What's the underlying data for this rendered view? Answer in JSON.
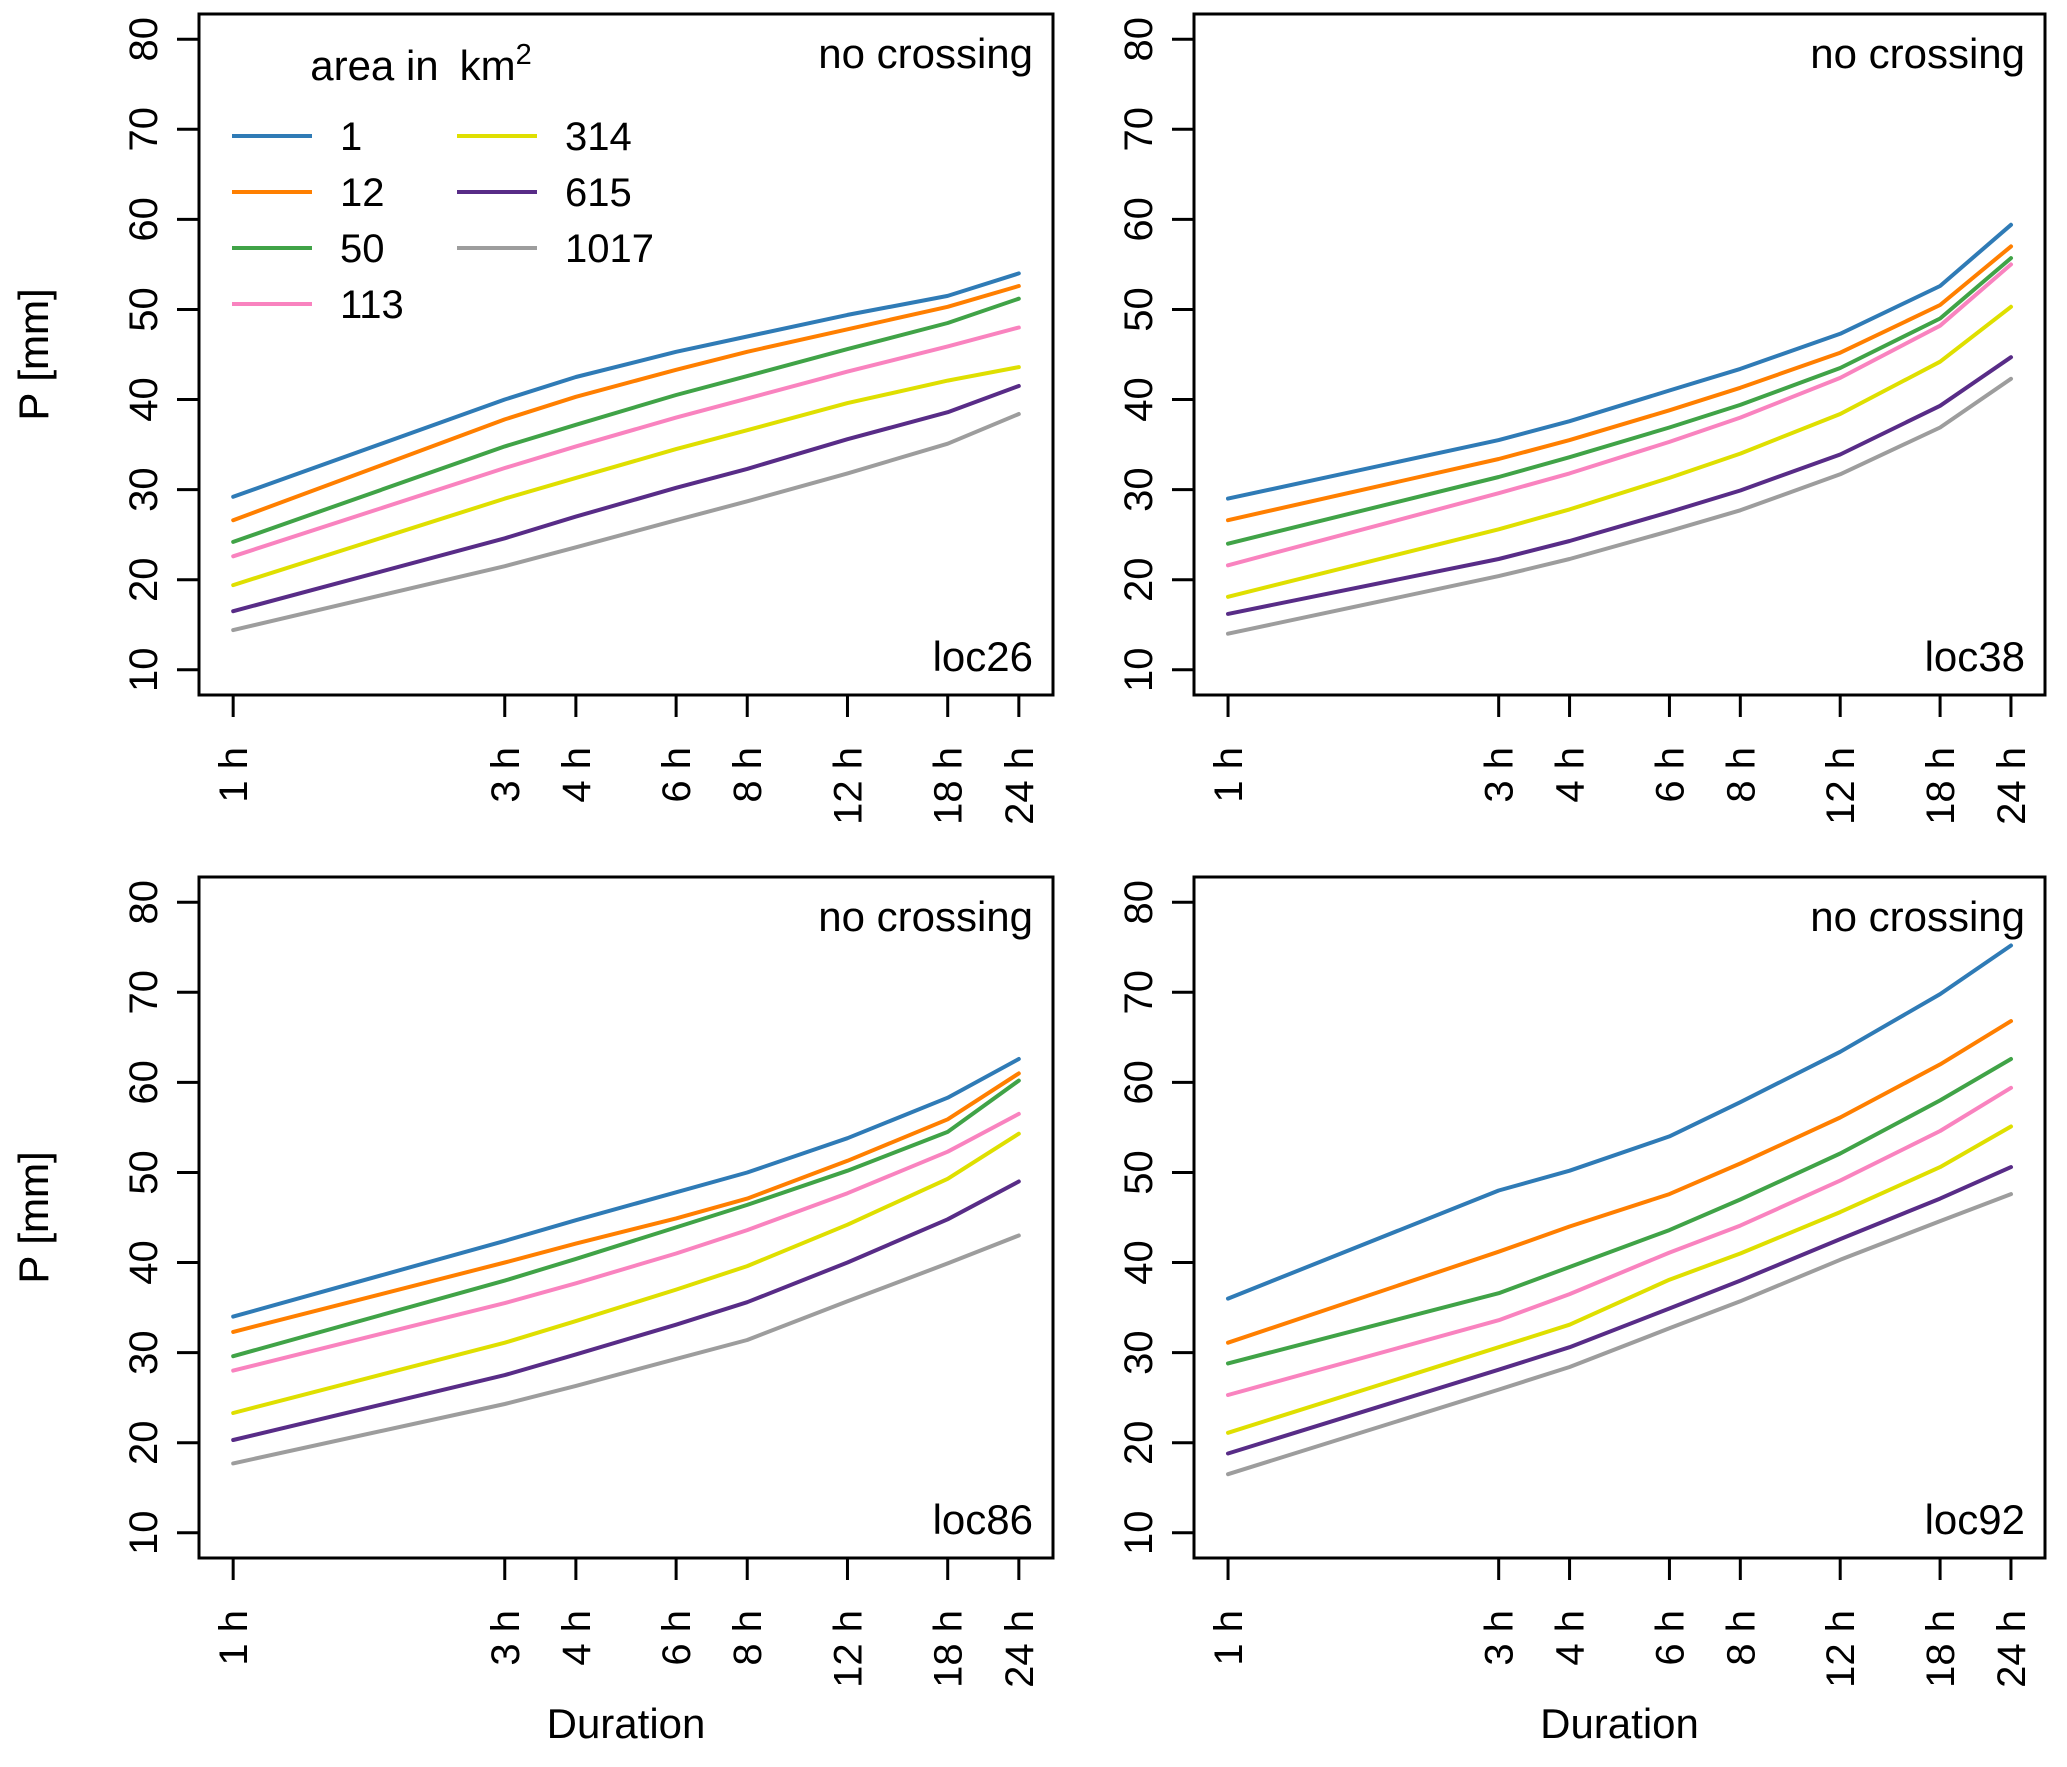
{
  "figure": {
    "background": "#ffffff",
    "text_color": "#000000"
  },
  "chart_data": {
    "type": "line",
    "layout": "2x2-panel-grid",
    "grid": "off",
    "x_scale": "log",
    "x_hours": [
      1,
      3,
      4,
      6,
      8,
      12,
      18,
      24
    ],
    "x_tick_labels": [
      "1 h",
      "3 h",
      "4 h",
      "6 h",
      "8 h",
      "12 h",
      "18 h",
      "24 h"
    ],
    "xlabel": "Duration",
    "ylabel": "P [mm]",
    "ylim": [
      10,
      80
    ],
    "yticks": [
      10,
      20,
      30,
      40,
      50,
      60,
      70,
      80
    ],
    "legend": {
      "title_text": "area in",
      "title_unit": "km",
      "title_exponent": "2",
      "position": "top-left-of-first-panel",
      "entries": [
        {
          "label": "1",
          "color": "#2f7bb6"
        },
        {
          "label": "12",
          "color": "#ff7f00"
        },
        {
          "label": "50",
          "color": "#40a347"
        },
        {
          "label": "113",
          "color": "#f983bf"
        },
        {
          "label": "314",
          "color": "#dfdf00"
        },
        {
          "label": "615",
          "color": "#582c87"
        },
        {
          "label": "1017",
          "color": "#9d9d9d"
        }
      ]
    },
    "panels": [
      {
        "label": "loc26",
        "note": "no crossing",
        "row": 0,
        "col": 0,
        "series": [
          {
            "name": "1",
            "values": [
              29.2,
              40.0,
              42.5,
              45.3,
              47.0,
              49.4,
              51.5,
              54.0
            ]
          },
          {
            "name": "12",
            "values": [
              26.6,
              37.8,
              40.3,
              43.3,
              45.3,
              47.8,
              50.3,
              52.6
            ]
          },
          {
            "name": "50",
            "values": [
              24.2,
              34.8,
              37.2,
              40.5,
              42.6,
              45.6,
              48.5,
              51.2
            ]
          },
          {
            "name": "113",
            "values": [
              22.6,
              32.4,
              34.8,
              38.0,
              40.1,
              43.1,
              45.9,
              48.0
            ]
          },
          {
            "name": "314",
            "values": [
              19.4,
              29.0,
              31.3,
              34.5,
              36.6,
              39.6,
              42.1,
              43.6
            ]
          },
          {
            "name": "615",
            "values": [
              16.5,
              24.6,
              27.0,
              30.2,
              32.3,
              35.6,
              38.6,
              41.5
            ]
          },
          {
            "name": "1017",
            "values": [
              14.4,
              21.5,
              23.6,
              26.6,
              28.7,
              31.8,
              35.1,
              38.4
            ]
          }
        ]
      },
      {
        "label": "loc38",
        "note": "no crossing",
        "row": 0,
        "col": 1,
        "series": [
          {
            "name": "1",
            "values": [
              29.0,
              35.5,
              37.6,
              41.0,
              43.4,
              47.3,
              52.6,
              59.4
            ]
          },
          {
            "name": "12",
            "values": [
              26.6,
              33.4,
              35.5,
              38.8,
              41.3,
              45.2,
              50.5,
              57.0
            ]
          },
          {
            "name": "50",
            "values": [
              24.0,
              31.4,
              33.6,
              36.9,
              39.4,
              43.5,
              49.0,
              55.7
            ]
          },
          {
            "name": "113",
            "values": [
              21.6,
              29.6,
              31.8,
              35.3,
              38.0,
              42.4,
              48.2,
              55.0
            ]
          },
          {
            "name": "314",
            "values": [
              18.1,
              25.6,
              27.8,
              31.3,
              34.0,
              38.4,
              44.2,
              50.3
            ]
          },
          {
            "name": "615",
            "values": [
              16.2,
              22.3,
              24.3,
              27.5,
              29.9,
              33.9,
              39.3,
              44.7
            ]
          },
          {
            "name": "1017",
            "values": [
              14.0,
              20.4,
              22.3,
              25.4,
              27.7,
              31.7,
              36.9,
              42.3
            ]
          }
        ]
      },
      {
        "label": "loc86",
        "note": "no crossing",
        "row": 1,
        "col": 0,
        "series": [
          {
            "name": "1",
            "values": [
              34.0,
              42.4,
              44.7,
              47.8,
              50.0,
              53.8,
              58.3,
              62.6
            ]
          },
          {
            "name": "12",
            "values": [
              32.3,
              40.0,
              42.1,
              44.9,
              47.1,
              51.3,
              55.9,
              61.0
            ]
          },
          {
            "name": "50",
            "values": [
              29.6,
              38.0,
              40.4,
              43.9,
              46.4,
              50.2,
              54.5,
              60.2
            ]
          },
          {
            "name": "113",
            "values": [
              28.0,
              35.5,
              37.7,
              41.0,
              43.6,
              47.7,
              52.3,
              56.5
            ]
          },
          {
            "name": "314",
            "values": [
              23.3,
              31.1,
              33.5,
              37.0,
              39.6,
              44.2,
              49.3,
              54.3
            ]
          },
          {
            "name": "615",
            "values": [
              20.3,
              27.5,
              29.8,
              33.1,
              35.6,
              40.0,
              44.8,
              49.0
            ]
          },
          {
            "name": "1017",
            "values": [
              17.7,
              24.3,
              26.3,
              29.3,
              31.4,
              35.7,
              39.9,
              43.0
            ]
          }
        ]
      },
      {
        "label": "loc92",
        "note": "no crossing",
        "row": 1,
        "col": 1,
        "series": [
          {
            "name": "1",
            "values": [
              36.0,
              48.0,
              50.2,
              54.0,
              57.8,
              63.4,
              69.8,
              75.2
            ]
          },
          {
            "name": "12",
            "values": [
              31.1,
              41.2,
              44.0,
              47.6,
              51.0,
              56.1,
              62.0,
              66.8
            ]
          },
          {
            "name": "50",
            "values": [
              28.8,
              36.6,
              39.5,
              43.6,
              47.0,
              52.1,
              58.0,
              62.6
            ]
          },
          {
            "name": "113",
            "values": [
              25.3,
              33.6,
              36.5,
              41.1,
              44.1,
              49.1,
              54.6,
              59.4
            ]
          },
          {
            "name": "314",
            "values": [
              21.1,
              30.6,
              33.1,
              38.1,
              41.0,
              45.6,
              50.6,
              55.1
            ]
          },
          {
            "name": "615",
            "values": [
              18.8,
              28.1,
              30.6,
              34.9,
              38.0,
              42.6,
              47.1,
              50.6
            ]
          },
          {
            "name": "1017",
            "values": [
              16.5,
              25.9,
              28.4,
              32.7,
              35.7,
              40.3,
              44.6,
              47.6
            ]
          }
        ]
      }
    ]
  }
}
